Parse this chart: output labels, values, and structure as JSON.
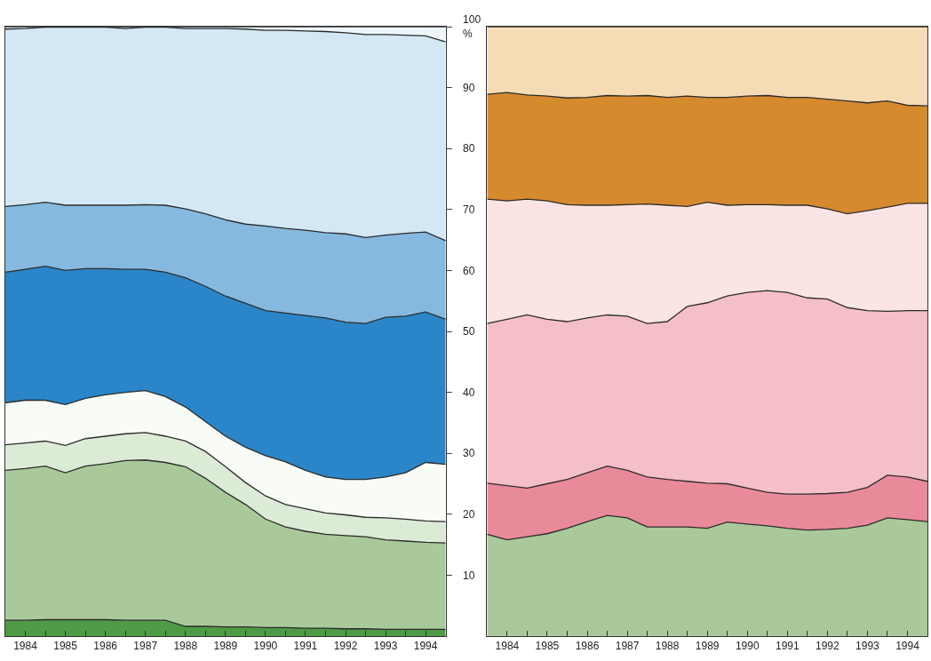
{
  "chart_data": [
    {
      "type": "area",
      "stacked": true,
      "x": [
        1984.0,
        1984.5,
        1985.0,
        1985.5,
        1986.0,
        1986.5,
        1987.0,
        1987.5,
        1988.0,
        1988.5,
        1989.0,
        1989.5,
        1990.0,
        1990.5,
        1991.0,
        1991.5,
        1992.0,
        1992.5,
        1993.0,
        1993.5,
        1994.0,
        1994.5,
        1995.0
      ],
      "xlim": [
        1984,
        1995
      ],
      "xticks": [
        {
          "value": 1984,
          "label": null
        },
        {
          "value": 1984.5,
          "label": "1984"
        },
        {
          "value": 1985,
          "label": null
        },
        {
          "value": 1985.5,
          "label": "1985"
        },
        {
          "value": 1986,
          "label": null
        },
        {
          "value": 1986.5,
          "label": "1986"
        },
        {
          "value": 1987,
          "label": null
        },
        {
          "value": 1987.5,
          "label": "1987"
        },
        {
          "value": 1988,
          "label": null
        },
        {
          "value": 1988.5,
          "label": "1988"
        },
        {
          "value": 1989,
          "label": null
        },
        {
          "value": 1989.5,
          "label": "1989"
        },
        {
          "value": 1990,
          "label": null
        },
        {
          "value": 1990.5,
          "label": "1990"
        },
        {
          "value": 1991,
          "label": null
        },
        {
          "value": 1991.5,
          "label": "1991"
        },
        {
          "value": 1992,
          "label": null
        },
        {
          "value": 1992.5,
          "label": "1992"
        },
        {
          "value": 1993,
          "label": null
        },
        {
          "value": 1993.5,
          "label": "1993"
        },
        {
          "value": 1994,
          "label": null
        },
        {
          "value": 1994.5,
          "label": "1994"
        },
        {
          "value": 1995,
          "label": null
        }
      ],
      "ylim": [
        0,
        100
      ],
      "yticks": [
        10,
        20,
        30,
        40,
        50,
        60,
        70,
        80,
        90,
        {
          "value": 100,
          "label": "100\n%"
        }
      ],
      "series": [
        {
          "color": "#4f9a45",
          "values": [
            2.6,
            2.6,
            2.7,
            2.7,
            2.7,
            2.7,
            2.6,
            2.6,
            2.6,
            1.6,
            1.6,
            1.5,
            1.5,
            1.4,
            1.4,
            1.3,
            1.3,
            1.2,
            1.2,
            1.1,
            1.1,
            1.1,
            1.1
          ]
        },
        {
          "color": "#a9c99a",
          "values": [
            24.6,
            24.9,
            25.2,
            24.1,
            25.2,
            25.6,
            26.2,
            26.3,
            25.9,
            26.2,
            24.3,
            22.1,
            20.1,
            17.8,
            16.5,
            15.9,
            15.4,
            15.3,
            15.1,
            14.7,
            14.5,
            14.3,
            14.2
          ]
        },
        {
          "color": "#dcebd6",
          "values": [
            4.2,
            4.2,
            4.1,
            4.5,
            4.5,
            4.5,
            4.4,
            4.5,
            4.3,
            4.2,
            4.4,
            4.2,
            3.6,
            3.8,
            3.7,
            3.7,
            3.5,
            3.4,
            3.2,
            3.6,
            3.6,
            3.5,
            3.5
          ]
        },
        {
          "color": "#f8fbf6",
          "values": [
            6.9,
            7.0,
            6.7,
            6.7,
            6.6,
            6.8,
            6.8,
            6.9,
            6.5,
            5.6,
            4.9,
            5.0,
            5.8,
            6.6,
            7.0,
            6.3,
            5.9,
            5.8,
            6.2,
            6.7,
            7.6,
            9.6,
            9.4
          ]
        },
        {
          "color": "#2a86c8",
          "values": [
            21.4,
            21.5,
            22.0,
            22.0,
            21.3,
            20.7,
            20.2,
            19.9,
            20.4,
            21.2,
            22.2,
            23.0,
            23.6,
            23.8,
            24.4,
            25.4,
            26.1,
            25.8,
            25.6,
            26.2,
            25.7,
            24.7,
            23.8
          ]
        },
        {
          "color": "#86b9df",
          "values": [
            10.8,
            10.6,
            10.5,
            10.7,
            10.4,
            10.4,
            10.5,
            10.6,
            11.0,
            11.3,
            11.9,
            12.5,
            13.0,
            13.9,
            13.9,
            14.0,
            14.0,
            14.5,
            14.1,
            13.5,
            13.6,
            13.1,
            12.9
          ]
        },
        {
          "color": "#d3e8f4",
          "values": [
            29.1,
            28.9,
            28.7,
            29.2,
            29.2,
            29.2,
            29.0,
            29.1,
            29.2,
            29.6,
            30.4,
            31.4,
            32.0,
            32.1,
            32.5,
            32.7,
            33.0,
            33.0,
            33.3,
            32.9,
            32.5,
            32.2,
            32.6
          ]
        },
        {
          "color": "#eef6fa",
          "values": [
            0.4,
            0.3,
            0.1,
            0.1,
            0.1,
            0.1,
            0.3,
            0.1,
            0.1,
            0.3,
            0.3,
            0.3,
            0.4,
            0.6,
            0.6,
            0.7,
            0.8,
            1.0,
            1.3,
            1.3,
            1.4,
            1.5,
            2.5
          ]
        }
      ]
    },
    {
      "type": "area",
      "stacked": true,
      "tick_labels": "x",
      "x": [
        1984.0,
        1984.5,
        1985.0,
        1985.5,
        1986.0,
        1986.5,
        1987.0,
        1987.5,
        1988.0,
        1988.5,
        1989.0,
        1989.5,
        1990.0,
        1990.5,
        1991.0,
        1991.5,
        1992.0,
        1992.5,
        1993.0,
        1993.5,
        1994.0,
        1994.5,
        1995.0
      ],
      "xlim": [
        1984,
        1995
      ],
      "xticks": [
        {
          "value": 1984,
          "label": null
        },
        {
          "value": 1984.5,
          "label": "1984"
        },
        {
          "value": 1985,
          "label": null
        },
        {
          "value": 1985.5,
          "label": "1985"
        },
        {
          "value": 1986,
          "label": null
        },
        {
          "value": 1986.5,
          "label": "1986"
        },
        {
          "value": 1987,
          "label": null
        },
        {
          "value": 1987.5,
          "label": "1987"
        },
        {
          "value": 1988,
          "label": null
        },
        {
          "value": 1988.5,
          "label": "1988"
        },
        {
          "value": 1989,
          "label": null
        },
        {
          "value": 1989.5,
          "label": "1989"
        },
        {
          "value": 1990,
          "label": null
        },
        {
          "value": 1990.5,
          "label": "1990"
        },
        {
          "value": 1991,
          "label": null
        },
        {
          "value": 1991.5,
          "label": "1991"
        },
        {
          "value": 1992,
          "label": null
        },
        {
          "value": 1992.5,
          "label": "1992"
        },
        {
          "value": 1993,
          "label": null
        },
        {
          "value": 1993.5,
          "label": "1993"
        },
        {
          "value": 1994,
          "label": null
        },
        {
          "value": 1994.5,
          "label": "1994"
        },
        {
          "value": 1995,
          "label": null
        }
      ],
      "ylim": [
        0,
        100
      ],
      "series": [
        {
          "color": "#a9c99a",
          "values": [
            16.7,
            15.8,
            16.3,
            16.8,
            17.7,
            18.8,
            19.8,
            19.4,
            17.9,
            17.9,
            17.9,
            17.7,
            18.7,
            18.4,
            18.1,
            17.7,
            17.4,
            17.5,
            17.7,
            18.2,
            19.4,
            19.1,
            18.8
          ]
        },
        {
          "color": "#e98a9a",
          "values": [
            8.4,
            8.9,
            8.0,
            8.2,
            8.0,
            8.0,
            8.1,
            7.8,
            8.2,
            7.8,
            7.5,
            7.4,
            6.3,
            5.9,
            5.5,
            5.6,
            5.9,
            5.9,
            5.9,
            6.2,
            7.0,
            7.0,
            6.6
          ]
        },
        {
          "color": "#f5bfc8",
          "values": [
            26.2,
            27.3,
            28.4,
            27.0,
            25.9,
            25.4,
            24.8,
            25.3,
            25.2,
            25.9,
            28.7,
            29.6,
            30.8,
            32.1,
            33.1,
            33.1,
            32.2,
            31.9,
            30.3,
            29.0,
            26.9,
            27.3,
            28.0
          ]
        },
        {
          "color": "#fde4e4",
          "values": [
            20.4,
            19.4,
            19.0,
            19.4,
            19.2,
            18.5,
            18.0,
            18.3,
            19.6,
            19.1,
            16.4,
            16.5,
            14.9,
            14.4,
            14.1,
            14.3,
            15.2,
            14.8,
            15.4,
            16.4,
            17.1,
            17.6,
            17.6
          ]
        },
        {
          "color": "#d68a2e",
          "values": [
            17.2,
            17.8,
            17.1,
            17.2,
            17.5,
            17.7,
            18.0,
            17.8,
            17.8,
            17.7,
            18.1,
            17.2,
            17.7,
            17.8,
            17.9,
            17.7,
            17.7,
            18.0,
            18.5,
            17.7,
            17.4,
            16.1,
            16.0
          ]
        },
        {
          "color": "#f6dcb5",
          "values": [
            11.1,
            10.8,
            11.2,
            11.4,
            11.7,
            11.6,
            11.3,
            11.4,
            11.3,
            11.6,
            11.4,
            11.6,
            11.6,
            11.4,
            11.3,
            11.6,
            11.6,
            11.9,
            12.2,
            12.5,
            12.2,
            12.9,
            13.0
          ]
        }
      ]
    }
  ]
}
